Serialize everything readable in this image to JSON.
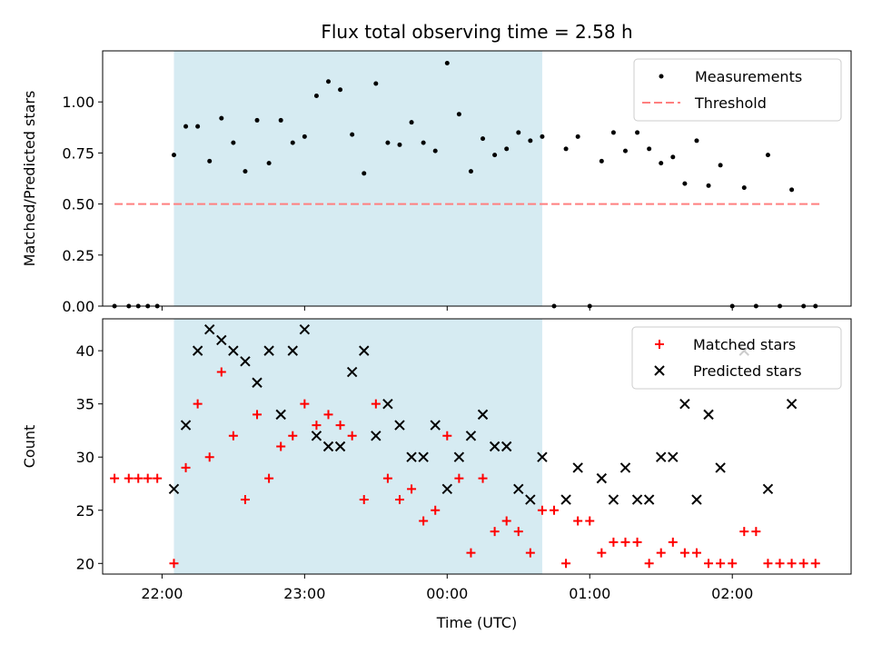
{
  "title": "Flux total observing time = 2.58 h",
  "xlabel": "Time (UTC)",
  "colors": {
    "shade": "#add8e6",
    "measurement": "#000000",
    "threshold": "#ff7f7f",
    "matched": "#ff0000",
    "predicted": "#000000"
  },
  "chart_data": [
    {
      "type": "scatter",
      "ylabel": "Matched/Predicted stars",
      "ylim": [
        0,
        1.25
      ],
      "yticks": [
        0,
        0.25,
        0.5,
        0.75,
        1.0
      ],
      "ytick_labels": [
        "0.00",
        "0.25",
        "0.50",
        "0.75",
        "1.00"
      ],
      "xticks": [
        "22:00",
        "23:00",
        "00:00",
        "01:00",
        "02:00"
      ],
      "xlim": [
        "21:35",
        "02:50"
      ],
      "shaded_span": [
        "22:05",
        "00:40"
      ],
      "legend": "top-right",
      "threshold": {
        "name": "Threshold",
        "value": 0.5,
        "x": [
          "21:40",
          "02:38"
        ],
        "style": "dashed"
      },
      "series": [
        {
          "name": "Measurements",
          "x": [
            "21:40",
            "21:46",
            "21:50",
            "21:54",
            "21:58",
            "22:05",
            "22:10",
            "22:15",
            "22:20",
            "22:25",
            "22:30",
            "22:35",
            "22:40",
            "22:45",
            "22:50",
            "22:55",
            "23:00",
            "23:05",
            "23:10",
            "23:15",
            "23:20",
            "23:25",
            "23:30",
            "23:35",
            "23:40",
            "23:45",
            "23:50",
            "23:55",
            "00:00",
            "00:05",
            "00:10",
            "00:15",
            "00:20",
            "00:25",
            "00:30",
            "00:35",
            "00:40",
            "00:45",
            "00:50",
            "00:55",
            "01:00",
            "01:05",
            "01:10",
            "01:15",
            "01:20",
            "01:25",
            "01:30",
            "01:35",
            "01:40",
            "01:45",
            "01:50",
            "01:55",
            "02:00",
            "02:05",
            "02:10",
            "02:15",
            "02:20",
            "02:25",
            "02:30",
            "02:35"
          ],
          "values": [
            0,
            0,
            0,
            0,
            0,
            0.74,
            0.88,
            0.88,
            0.71,
            0.92,
            0.8,
            0.66,
            0.91,
            0.7,
            0.91,
            0.8,
            0.83,
            1.03,
            1.1,
            1.06,
            0.84,
            0.65,
            1.09,
            0.8,
            0.79,
            0.9,
            0.8,
            0.76,
            1.19,
            0.94,
            0.66,
            0.82,
            0.74,
            0.77,
            0.85,
            0.81,
            0.83,
            0,
            0.77,
            0.83,
            0,
            0.71,
            0.85,
            0.76,
            0.85,
            0.77,
            0.7,
            0.73,
            0.6,
            0.81,
            0.59,
            0.69,
            0,
            0.58,
            0,
            0.74,
            0,
            0.57,
            0,
            0
          ]
        }
      ]
    },
    {
      "type": "scatter",
      "ylabel": "Count",
      "ylim": [
        19,
        43
      ],
      "yticks": [
        20,
        25,
        30,
        35,
        40
      ],
      "ytick_labels": [
        "20",
        "25",
        "30",
        "35",
        "40"
      ],
      "xticks": [
        "22:00",
        "23:00",
        "00:00",
        "01:00",
        "02:00"
      ],
      "xtick_labels": [
        "22:00",
        "23:00",
        "00:00",
        "01:00",
        "02:00"
      ],
      "xlim": [
        "21:35",
        "02:50"
      ],
      "shaded_span": [
        "22:05",
        "00:40"
      ],
      "legend": "top-right",
      "series": [
        {
          "name": "Matched stars",
          "marker": "plus",
          "x": [
            "21:40",
            "21:46",
            "21:50",
            "21:54",
            "21:58",
            "22:05",
            "22:10",
            "22:15",
            "22:20",
            "22:25",
            "22:30",
            "22:35",
            "22:40",
            "22:45",
            "22:50",
            "22:55",
            "23:00",
            "23:05",
            "23:10",
            "23:15",
            "23:20",
            "23:25",
            "23:30",
            "23:35",
            "23:40",
            "23:45",
            "23:50",
            "23:55",
            "00:00",
            "00:05",
            "00:10",
            "00:15",
            "00:20",
            "00:25",
            "00:30",
            "00:35",
            "00:40",
            "00:45",
            "00:50",
            "00:55",
            "01:00",
            "01:05",
            "01:10",
            "01:15",
            "01:20",
            "01:25",
            "01:30",
            "01:35",
            "01:40",
            "01:45",
            "01:50",
            "01:55",
            "02:00",
            "02:05",
            "02:10",
            "02:15",
            "02:20",
            "02:25",
            "02:30",
            "02:35"
          ],
          "values": [
            28,
            28,
            28,
            28,
            28,
            20,
            29,
            35,
            30,
            38,
            32,
            26,
            34,
            28,
            31,
            32,
            35,
            33,
            34,
            33,
            32,
            26,
            35,
            28,
            26,
            27,
            24,
            25,
            32,
            28,
            21,
            28,
            23,
            24,
            23,
            21,
            25,
            25,
            20,
            24,
            24,
            21,
            22,
            22,
            22,
            20,
            21,
            22,
            21,
            21,
            20,
            20,
            20,
            23,
            23,
            20,
            20,
            20,
            20,
            20
          ]
        },
        {
          "name": "Predicted stars",
          "marker": "x",
          "x": [
            "22:05",
            "22:10",
            "22:15",
            "22:20",
            "22:25",
            "22:30",
            "22:35",
            "22:40",
            "22:45",
            "22:50",
            "22:55",
            "23:00",
            "23:05",
            "23:10",
            "23:15",
            "23:20",
            "23:25",
            "23:30",
            "23:35",
            "23:40",
            "23:45",
            "23:50",
            "23:55",
            "00:00",
            "00:05",
            "00:10",
            "00:15",
            "00:20",
            "00:25",
            "00:30",
            "00:35",
            "00:40",
            "00:50",
            "00:55",
            "01:05",
            "01:10",
            "01:15",
            "01:20",
            "01:25",
            "01:30",
            "01:35",
            "01:40",
            "01:45",
            "01:50",
            "01:55",
            "02:05",
            "02:15",
            "02:25"
          ],
          "values": [
            27,
            33,
            40,
            42,
            41,
            40,
            39,
            37,
            40,
            34,
            40,
            42,
            32,
            31,
            31,
            38,
            40,
            32,
            35,
            33,
            30,
            30,
            33,
            27,
            30,
            32,
            34,
            31,
            31,
            27,
            26,
            30,
            26,
            29,
            28,
            26,
            29,
            26,
            26,
            30,
            30,
            35,
            26,
            34,
            29,
            40,
            27,
            35
          ]
        }
      ]
    }
  ]
}
